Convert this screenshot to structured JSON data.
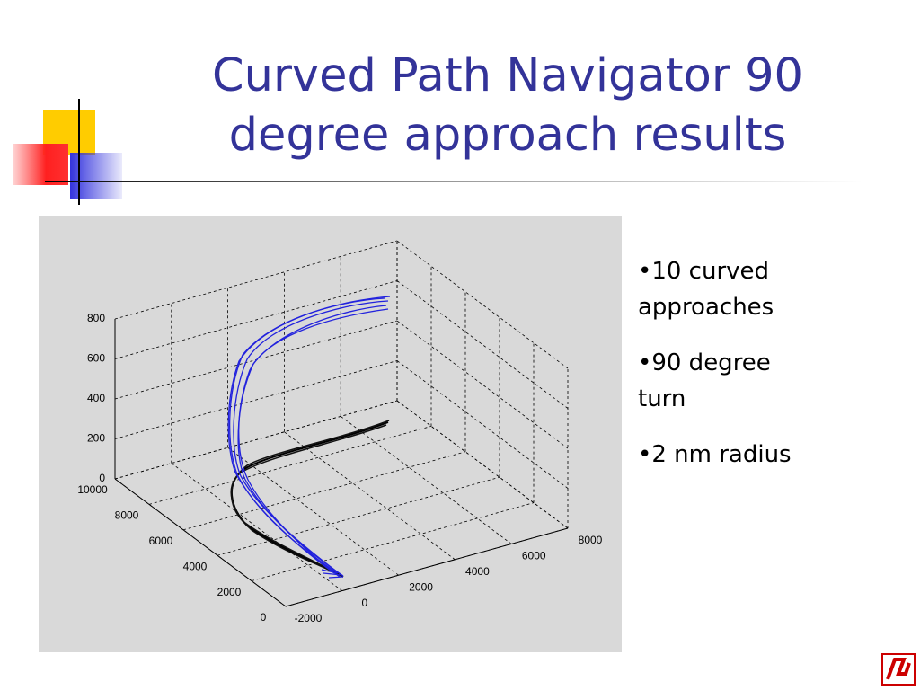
{
  "title": [
    "Curved Path Navigator 90",
    "degree approach results"
  ],
  "bullets": [
    "•10 curved approaches",
    "•90 degree turn",
    "•2 nm radius"
  ],
  "figure": {
    "xticks": [
      -2000,
      0,
      2000,
      4000,
      6000,
      8000
    ],
    "yticks": [
      0,
      2000,
      4000,
      6000,
      8000,
      10000
    ],
    "zticks": [
      0,
      200,
      400,
      600,
      800
    ]
  }
}
